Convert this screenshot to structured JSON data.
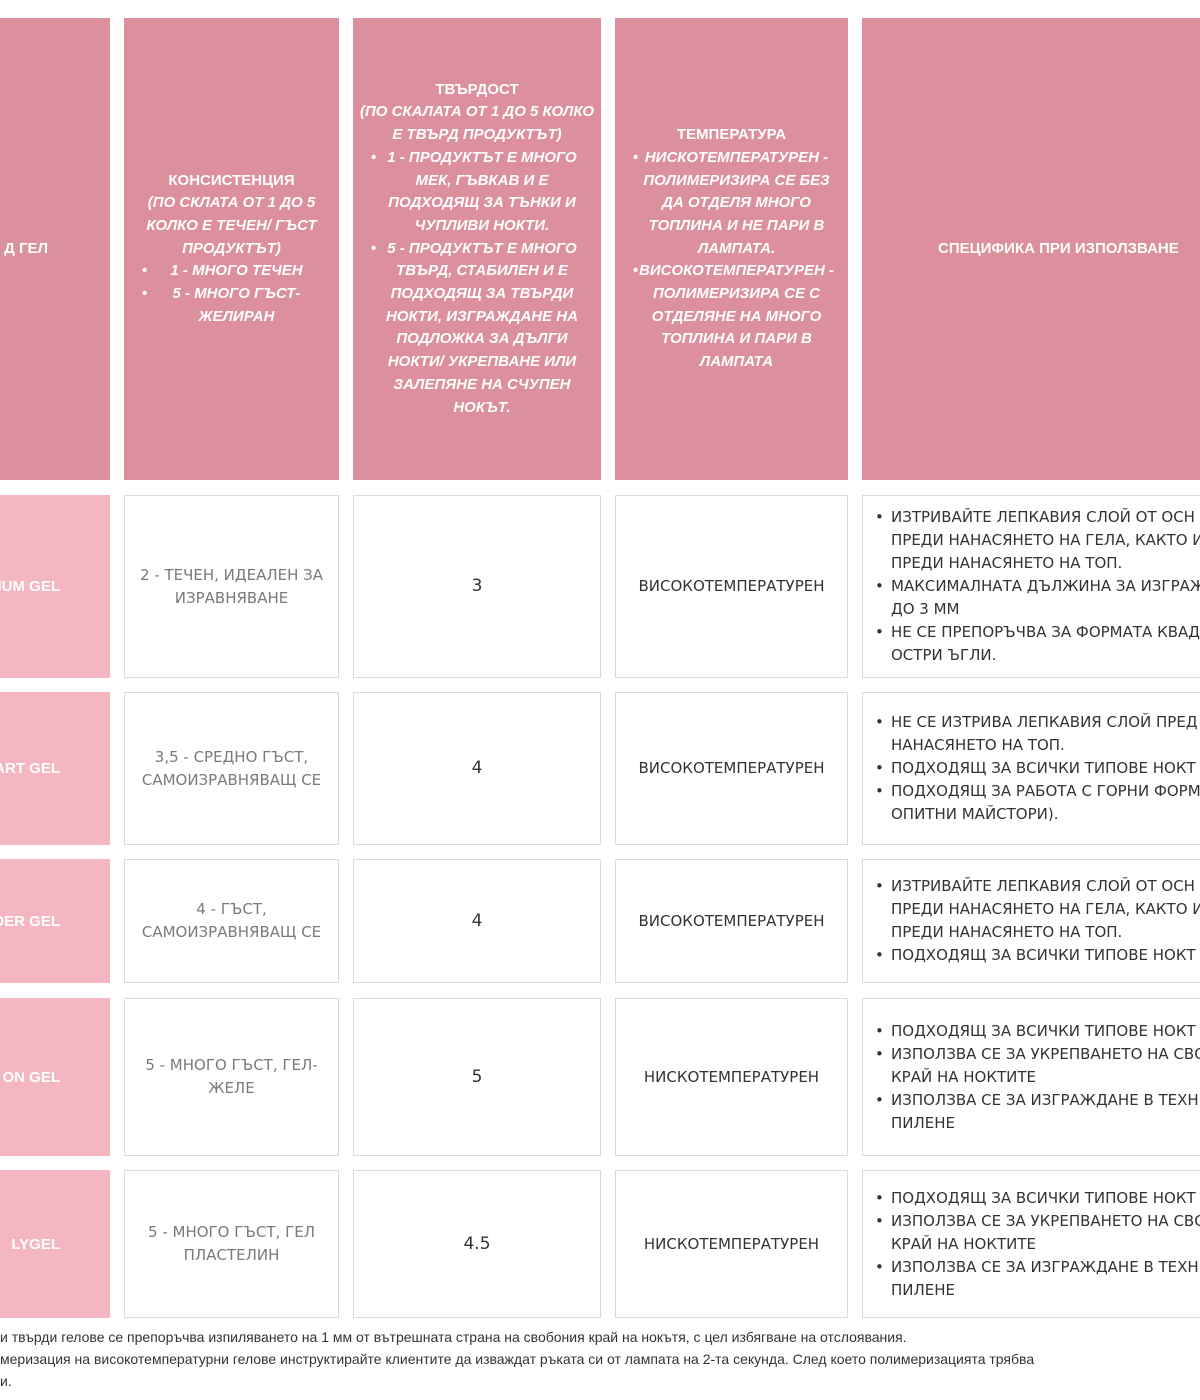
{
  "colors": {
    "header": "#dc8f9c",
    "name_cell": "#f4b7c2",
    "border": "#e3d6d9"
  },
  "headers": {
    "type": "Д ГЕЛ",
    "consistency": {
      "title": "КОНСИСТЕНЦИЯ",
      "sub": "(ПО СКЛАТА ОТ 1 ДО 5 КОЛКО Е ТЕЧЕН/ ГЪСТ ПРОДУКТЪТ)",
      "bullets": [
        "1 - МНОГО ТЕЧЕН",
        "5 - МНОГО ГЪСТ- ЖЕЛИРАН"
      ]
    },
    "hardness": {
      "title": "ТВЪРДОСТ",
      "sub": "(ПО СКАЛАТА ОТ 1 ДО 5 КОЛКО Е ТВЪРД ПРОДУКТЪТ)",
      "bullets": [
        "1 - ПРОДУКТЪТ Е МНОГО МЕК, ГЪВКАВ И Е ПОДХОДЯЩ ЗА ТЪНКИ И ЧУПЛИВИ НОКТИ.",
        "5 - ПРОДУКТЪТ Е МНОГО ТВЪРД, СТАБИЛЕН И Е ПОДХОДЯЩ ЗА ТВЪРДИ НОКТИ, ИЗГРАЖДАНЕ НА ПОДЛОЖКА ЗА ДЪЛГИ НОКТИ/ УКРЕПВАНЕ ИЛИ ЗАЛЕПЯНЕ НА СЧУПЕН НОКЪТ."
      ]
    },
    "temperature": {
      "title": "ТЕМПЕРАТУРА",
      "bullets": [
        "НИСКОТЕМПЕРАТУРЕН - ПОЛИМЕРИЗИРА СЕ БЕЗ ДА ОТДЕЛЯ МНОГО ТОПЛИНА И НЕ ПАРИ В ЛАМПАТА.",
        "ВИСОКОТЕМПЕРАТУРЕН - ПОЛИМЕРИЗИРА СЕ С ОТДЕЛЯНЕ НА МНОГО ТОПЛИНА И ПАРИ В ЛАМПАТА"
      ]
    },
    "specifics": "СПЕЦИФИКА ПРИ ИЗПОЛЗВАНЕ"
  },
  "rows": [
    {
      "name": "IUM GEL",
      "consistency": "2 - ТЕЧЕН, ИДЕАЛЕН ЗА ИЗРАВНЯВАНЕ",
      "hardness": "3",
      "temperature": "ВИСОКОТЕМПЕРАТУРЕН",
      "specifics": [
        [
          "ИЗТРИВАЙТЕ ЛЕПКАВИЯ СЛОЙ ОТ ОСН",
          "ПРЕДИ НАНАСЯНЕТО НА ГЕЛА, КАКТО И",
          "ПРЕДИ НАНАСЯНЕТО НА ТОП."
        ],
        [
          "МАКСИМАЛНАТА ДЪЛЖИНА ЗА ИЗГРАЖ",
          "ДО 3 ММ"
        ],
        [
          "НЕ СЕ ПРЕПОРЪЧВА ЗА ФОРМАТА КВАД",
          "ОСТРИ ЪГЛИ."
        ]
      ]
    },
    {
      "name": "ART GEL",
      "consistency": "3,5 - СРЕДНО ГЪСТ, САМОИЗРАВНЯВАЩ СЕ",
      "hardness": "4",
      "temperature": "ВИСОКОТЕМПЕРАТУРЕН",
      "specifics": [
        [
          "НЕ СЕ ИЗТРИВА ЛЕПКАВИЯ СЛОЙ ПРЕД",
          "НАНАСЯНЕТО НА ТОП."
        ],
        [
          "ПОДХОДЯЩ ЗА ВСИЧКИ ТИПОВЕ НОКТ"
        ],
        [
          "ПОДХОДЯЩ ЗА РАБОТА С ГОРНИ ФОРМ",
          "ОПИТНИ МАЙСТОРИ)."
        ]
      ]
    },
    {
      "name": "DER GEL",
      "consistency": "4 - ГЪСТ, САМОИЗРАВНЯВАЩ СЕ",
      "hardness": "4",
      "temperature": "ВИСОКОТЕМПЕРАТУРЕН",
      "specifics": [
        [
          "ИЗТРИВАЙТЕ ЛЕПКАВИЯ СЛОЙ ОТ ОСН",
          "ПРЕДИ НАНАСЯНЕТО НА ГЕЛА, КАКТО И",
          "ПРЕДИ НАНАСЯНЕТО НА ТОП."
        ],
        [
          "ПОДХОДЯЩ ЗА ВСИЧКИ ТИПОВЕ НОКТ"
        ]
      ]
    },
    {
      "name": "ON GEL",
      "consistency": "5 - МНОГО ГЪСТ, ГЕЛ-ЖЕЛЕ",
      "hardness": "5",
      "temperature": "НИСКОТЕМПЕРАТУРЕН",
      "specifics": [
        [
          "ПОДХОДЯЩ ЗА ВСИЧКИ ТИПОВЕ НОКТ"
        ],
        [
          "ИЗПОЛЗВА СЕ ЗА УКРЕПВАНЕТО НА СВО",
          "КРАЙ НА НОКТИТЕ"
        ],
        [
          "ИЗПОЛЗВА СЕ ЗА ИЗГРАЖДАНЕ В ТЕХН",
          "ПИЛЕНЕ"
        ]
      ]
    },
    {
      "name": "LYGEL",
      "consistency": "5 - МНОГО ГЪСТ, ГЕЛ ПЛАСТЕЛИН",
      "hardness": "4.5",
      "temperature": "НИСКОТЕМПЕРАТУРЕН",
      "specifics": [
        [
          "ПОДХОДЯЩ ЗА ВСИЧКИ ТИПОВЕ НОКТ"
        ],
        [
          "ИЗПОЛЗВА СЕ ЗА УКРЕПВАНЕТО НА СВО",
          "КРАЙ НА НОКТИТЕ"
        ],
        [
          "ИЗПОЛЗВА СЕ ЗА ИЗГРАЖДАНЕ В ТЕХН",
          "ПИЛЕНЕ"
        ]
      ]
    }
  ],
  "footnotes": [
    "и твърди гелове се препоръчва изпиляването на 1 мм от вътрешната страна на свобония край на нокътя, с цел избягване на отслоявания.",
    "меризация на високотемпературни гелове инструктирайте клиентите да изваждат ръката си от лампата на 2-та секунда. След което полимеризацията трябва",
    "и."
  ]
}
